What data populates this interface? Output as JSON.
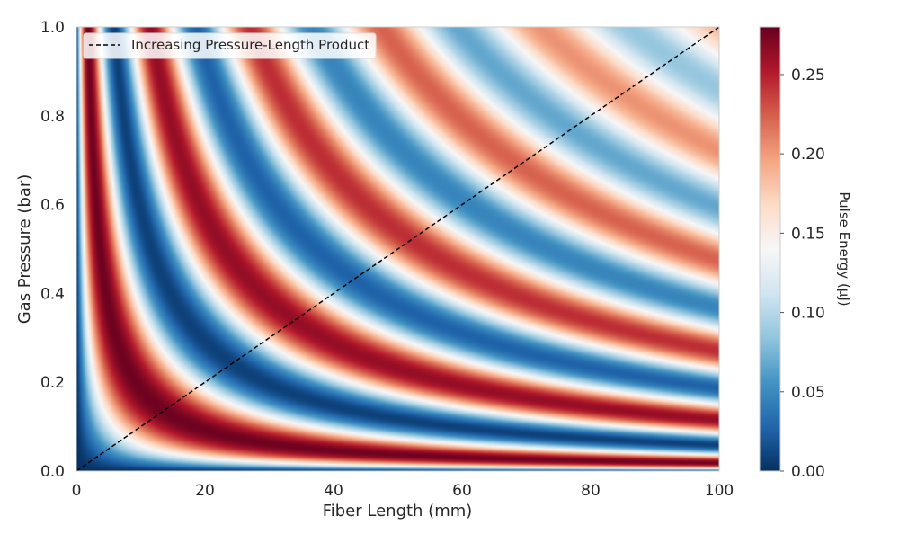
{
  "chart_data": {
    "type": "heatmap",
    "title": "",
    "xlabel": "Fiber Length (mm)",
    "ylabel": "Gas Pressure (bar)",
    "xlim": [
      0,
      100
    ],
    "ylim": [
      0,
      1
    ],
    "x_ticks": [
      0,
      20,
      40,
      60,
      80,
      100
    ],
    "x_tick_labels": [
      "0",
      "20",
      "40",
      "60",
      "80",
      "100"
    ],
    "y_ticks": [
      0,
      0.2,
      0.4,
      0.6,
      0.8,
      1.0
    ],
    "y_tick_labels": [
      "0.0",
      "0.2",
      "0.4",
      "0.6",
      "0.8",
      "1.0"
    ],
    "colorbar": {
      "label": "Pulse Energy (μJ)",
      "range": [
        0,
        0.28
      ],
      "ticks": [
        0,
        0.05,
        0.1,
        0.15,
        0.2,
        0.25
      ],
      "tick_labels": [
        "0.00",
        "0.05",
        "0.10",
        "0.15",
        "0.20",
        "0.25"
      ],
      "colormap": "RdBu_r"
    },
    "field": {
      "description_of_pattern": "oscillatory in pressure-length product P*L with damping",
      "min": 0,
      "max": 0.28
    },
    "series": [
      {
        "name": "Increasing Pressure-Length Product",
        "style": "dashed",
        "color": "#000000",
        "x": [
          0,
          100
        ],
        "y": [
          0,
          1.0
        ]
      }
    ],
    "legend": {
      "placement": "top-left",
      "entries": [
        "Increasing Pressure-Length Product"
      ]
    },
    "grid": false
  },
  "colors": {
    "cmap_stops": [
      "#053061",
      "#2166ac",
      "#4393c3",
      "#92c5de",
      "#d1e5f0",
      "#f7f7f7",
      "#fddbc7",
      "#f4a582",
      "#d6604d",
      "#b2182b",
      "#67001f"
    ]
  }
}
